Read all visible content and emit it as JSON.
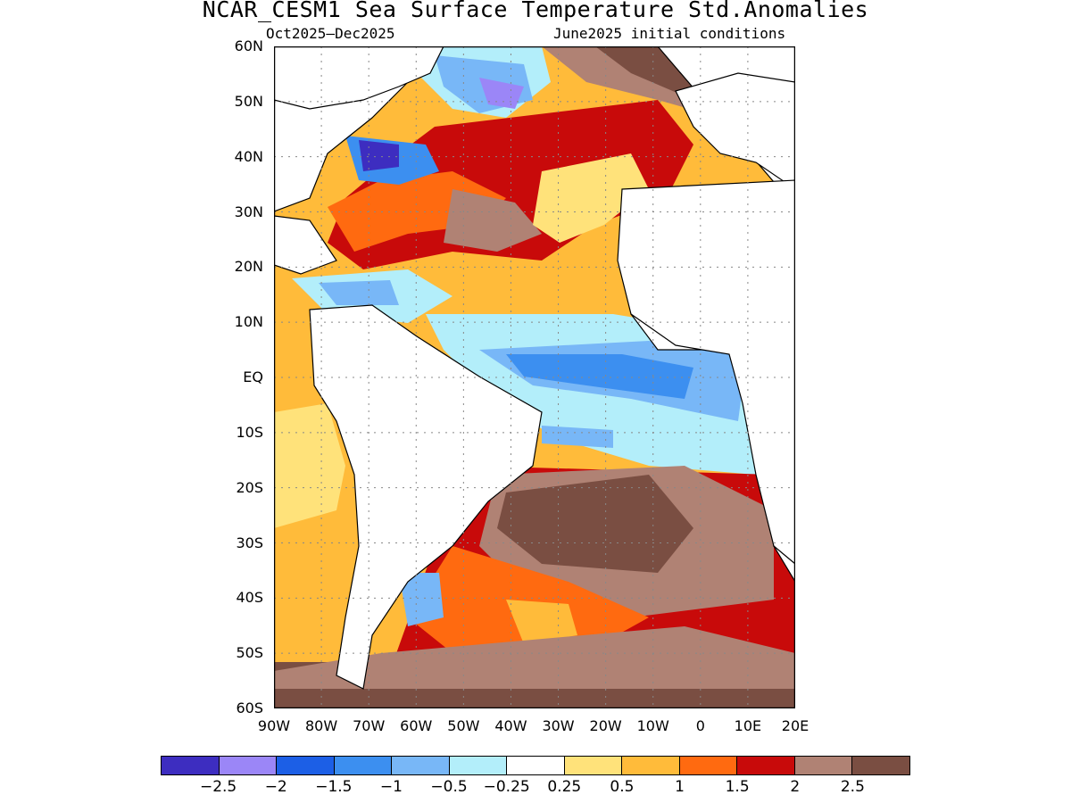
{
  "title": "NCAR_CESM1 Sea Surface Temperature Std.Anomalies",
  "period": "Oct2025–Dec2025",
  "initial_conditions": "June2025 initial conditions",
  "lat_labels": [
    "60N",
    "50N",
    "40N",
    "30N",
    "20N",
    "10N",
    "EQ",
    "10S",
    "20S",
    "30S",
    "40S",
    "50S",
    "60S"
  ],
  "lon_labels": [
    "90W",
    "80W",
    "70W",
    "60W",
    "50W",
    "40W",
    "30W",
    "20W",
    "10W",
    "0",
    "10E",
    "20E"
  ],
  "colorbar": {
    "colors": [
      "#3d2dc0",
      "#9b86f7",
      "#1c5fe6",
      "#3c8ff0",
      "#78b7f7",
      "#b3eefa",
      "#ffffff",
      "#ffe27a",
      "#ffbb3a",
      "#ff6a10",
      "#c80a0a",
      "#b08274",
      "#7a4e42"
    ],
    "labels": [
      "−2.5",
      "−2",
      "−1.5",
      "−1",
      "−0.5",
      "−0.25",
      "0.25",
      "0.5",
      "1",
      "1.5",
      "2",
      "2.5"
    ]
  },
  "map": {
    "extent": {
      "lon_min": -90,
      "lon_max": 20,
      "lat_min": -60,
      "lat_max": 60
    },
    "colors": {
      "ocean_warm": "#ffbb3a",
      "strong_warm": "#ff6a10",
      "very_warm": "#c80a0a",
      "extreme_warm": "#b08274",
      "max_warm": "#7a4e42",
      "mild_warm": "#ffe27a",
      "mild_cool": "#b3eefa",
      "cool": "#78b7f7",
      "cooler": "#3c8ff0",
      "cold": "#1c5fe6",
      "very_cold": "#9b86f7",
      "extreme_cold": "#3d2dc0",
      "land": "#ffffff"
    }
  }
}
